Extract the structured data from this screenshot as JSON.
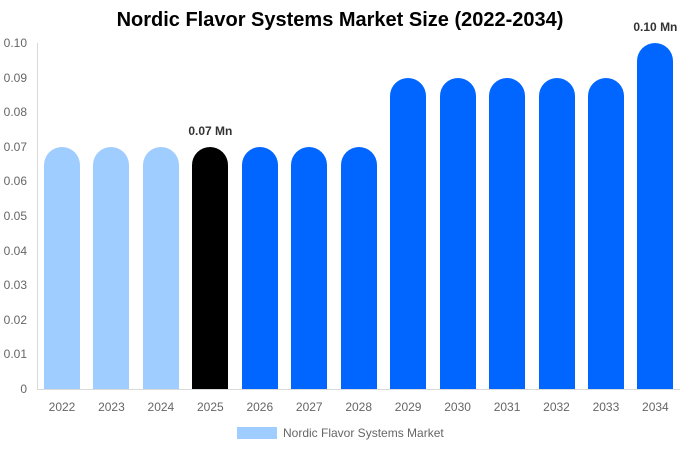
{
  "chart_data": {
    "type": "bar",
    "title": "Nordic Flavor Systems Market Size (2022-2034)",
    "xlabel": "",
    "ylabel": "",
    "ylim": [
      0,
      0.1
    ],
    "yticks": [
      "0",
      "0.01",
      "0.02",
      "0.03",
      "0.04",
      "0.05",
      "0.06",
      "0.07",
      "0.08",
      "0.09",
      "0.10"
    ],
    "categories": [
      "2022",
      "2023",
      "2024",
      "2025",
      "2026",
      "2027",
      "2028",
      "2029",
      "2030",
      "2031",
      "2032",
      "2033",
      "2034"
    ],
    "series": [
      {
        "name": "Nordic Flavor Systems Market",
        "values": [
          0.07,
          0.07,
          0.07,
          0.07,
          0.07,
          0.07,
          0.07,
          0.09,
          0.09,
          0.09,
          0.09,
          0.09,
          0.1
        ]
      }
    ],
    "bar_colors": [
      "#a0cdff",
      "#a0cdff",
      "#a0cdff",
      "#000000",
      "#0066ff",
      "#0066ff",
      "#0066ff",
      "#0066ff",
      "#0066ff",
      "#0066ff",
      "#0066ff",
      "#0066ff",
      "#0066ff"
    ],
    "annotations": [
      {
        "category": "2025",
        "text": "0.07 Mn"
      },
      {
        "category": "2034",
        "text": "0.10 Mn"
      }
    ],
    "legend": {
      "position": "bottom",
      "entries": [
        {
          "label": "Nordic Flavor Systems Market",
          "color": "#a0cdff"
        }
      ]
    },
    "grid": false
  }
}
